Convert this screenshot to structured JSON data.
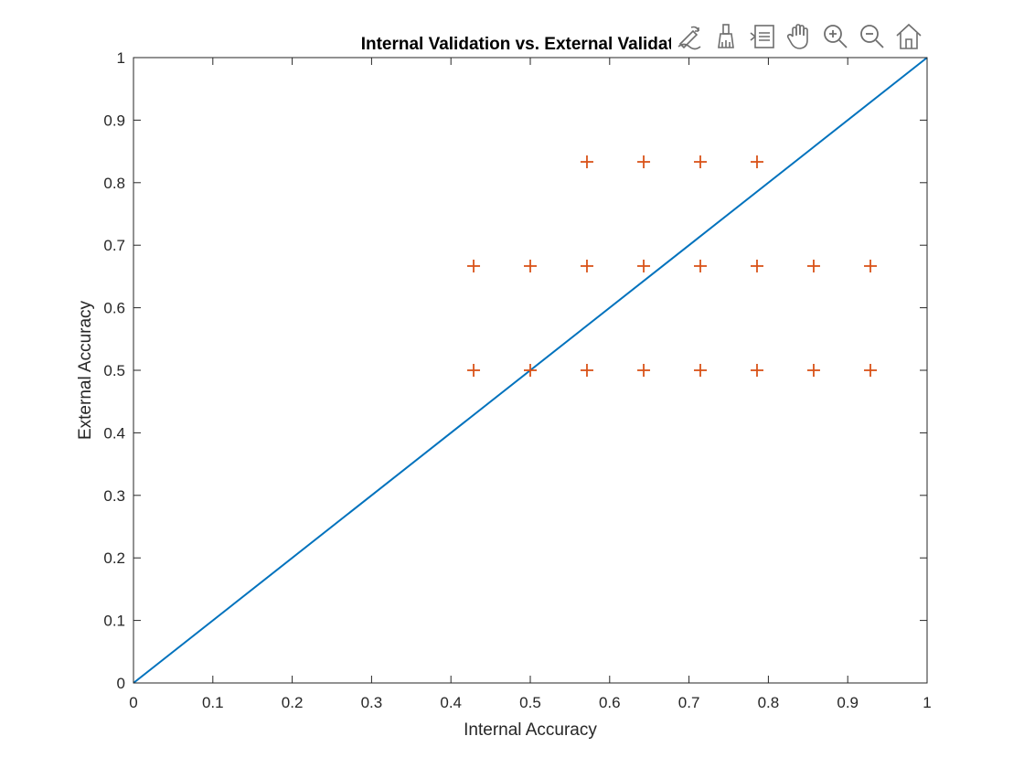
{
  "chart_data": {
    "type": "scatter",
    "title": "Internal Validation vs. External Validation",
    "xlabel": "Internal Accuracy",
    "ylabel": "External Accuracy",
    "xlim": [
      0,
      1
    ],
    "ylim": [
      0,
      1
    ],
    "xticks": [
      0,
      0.1,
      0.2,
      0.3,
      0.4,
      0.5,
      0.6,
      0.7,
      0.8,
      0.9,
      1
    ],
    "xtick_labels": [
      "0",
      "0.1",
      "0.2",
      "0.3",
      "0.4",
      "0.5",
      "0.6",
      "0.7",
      "0.8",
      "0.9",
      "1"
    ],
    "yticks": [
      0,
      0.1,
      0.2,
      0.3,
      0.4,
      0.5,
      0.6,
      0.7,
      0.8,
      0.9,
      1
    ],
    "ytick_labels": [
      "0",
      "0.1",
      "0.2",
      "0.3",
      "0.4",
      "0.5",
      "0.6",
      "0.7",
      "0.8",
      "0.9",
      "1"
    ],
    "grid": false,
    "series": [
      {
        "kind": "line",
        "color": "#0072BD",
        "x": [
          0,
          1
        ],
        "y": [
          0,
          1
        ]
      },
      {
        "kind": "scatter",
        "marker": "plus",
        "color": "#D95319",
        "x": [
          0.5714,
          0.6429,
          0.7143,
          0.7857,
          0.4286,
          0.5,
          0.5714,
          0.6429,
          0.7143,
          0.7857,
          0.8571,
          0.9286,
          0.4286,
          0.5,
          0.5714,
          0.6429,
          0.7143,
          0.7857,
          0.8571,
          0.9286
        ],
        "y": [
          0.8333,
          0.8333,
          0.8333,
          0.8333,
          0.6667,
          0.6667,
          0.6667,
          0.6667,
          0.6667,
          0.6667,
          0.6667,
          0.6667,
          0.5,
          0.5,
          0.5,
          0.5,
          0.5,
          0.5,
          0.5,
          0.5
        ]
      }
    ]
  },
  "toolbar": {
    "items": [
      "edit-plot-icon",
      "brush-icon",
      "data-tips-icon",
      "pan-icon",
      "zoom-in-icon",
      "zoom-out-icon",
      "home-icon"
    ]
  }
}
